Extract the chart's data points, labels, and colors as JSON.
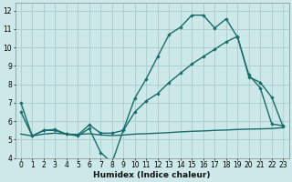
{
  "xlabel": "Humidex (Indice chaleur)",
  "background_color": "#cce8e8",
  "grid_color": "#aacccc",
  "line_color": "#1a6b6b",
  "xlim": [
    -0.5,
    23.5
  ],
  "ylim": [
    4,
    12.4
  ],
  "yticks": [
    4,
    5,
    6,
    7,
    8,
    9,
    10,
    11,
    12
  ],
  "xticks": [
    0,
    1,
    2,
    3,
    4,
    5,
    6,
    7,
    8,
    9,
    10,
    11,
    12,
    13,
    14,
    15,
    16,
    17,
    18,
    19,
    20,
    21,
    22,
    23
  ],
  "line1_x": [
    0,
    1,
    2,
    3,
    4,
    5,
    6,
    7,
    8,
    9,
    10,
    11,
    12,
    13,
    14,
    15,
    16,
    17,
    18,
    19,
    20,
    21,
    22,
    23
  ],
  "line1_y": [
    7.0,
    5.2,
    5.5,
    5.5,
    5.3,
    5.2,
    5.6,
    4.3,
    3.75,
    5.55,
    7.25,
    8.3,
    9.5,
    10.7,
    11.1,
    11.75,
    11.75,
    11.05,
    11.55,
    10.55,
    8.5,
    7.8,
    5.85,
    5.75
  ],
  "line2_x": [
    0,
    1,
    2,
    3,
    4,
    5,
    6,
    7,
    8,
    9,
    10,
    11,
    12,
    13,
    14,
    15,
    16,
    17,
    18,
    19,
    20,
    21,
    22,
    23
  ],
  "line2_y": [
    6.5,
    5.2,
    5.5,
    5.55,
    5.3,
    5.25,
    5.8,
    5.35,
    5.35,
    5.5,
    6.5,
    7.1,
    7.5,
    8.1,
    8.6,
    9.1,
    9.5,
    9.9,
    10.3,
    10.6,
    8.4,
    8.1,
    7.3,
    5.7
  ],
  "line3_x": [
    0,
    1,
    2,
    3,
    4,
    5,
    6,
    7,
    8,
    9,
    10,
    11,
    12,
    13,
    14,
    15,
    16,
    17,
    18,
    19,
    20,
    21,
    22,
    23
  ],
  "line3_y": [
    5.3,
    5.2,
    5.3,
    5.35,
    5.3,
    5.28,
    5.32,
    5.25,
    5.22,
    5.25,
    5.3,
    5.32,
    5.35,
    5.38,
    5.42,
    5.45,
    5.47,
    5.5,
    5.52,
    5.55,
    5.57,
    5.58,
    5.6,
    5.65
  ]
}
